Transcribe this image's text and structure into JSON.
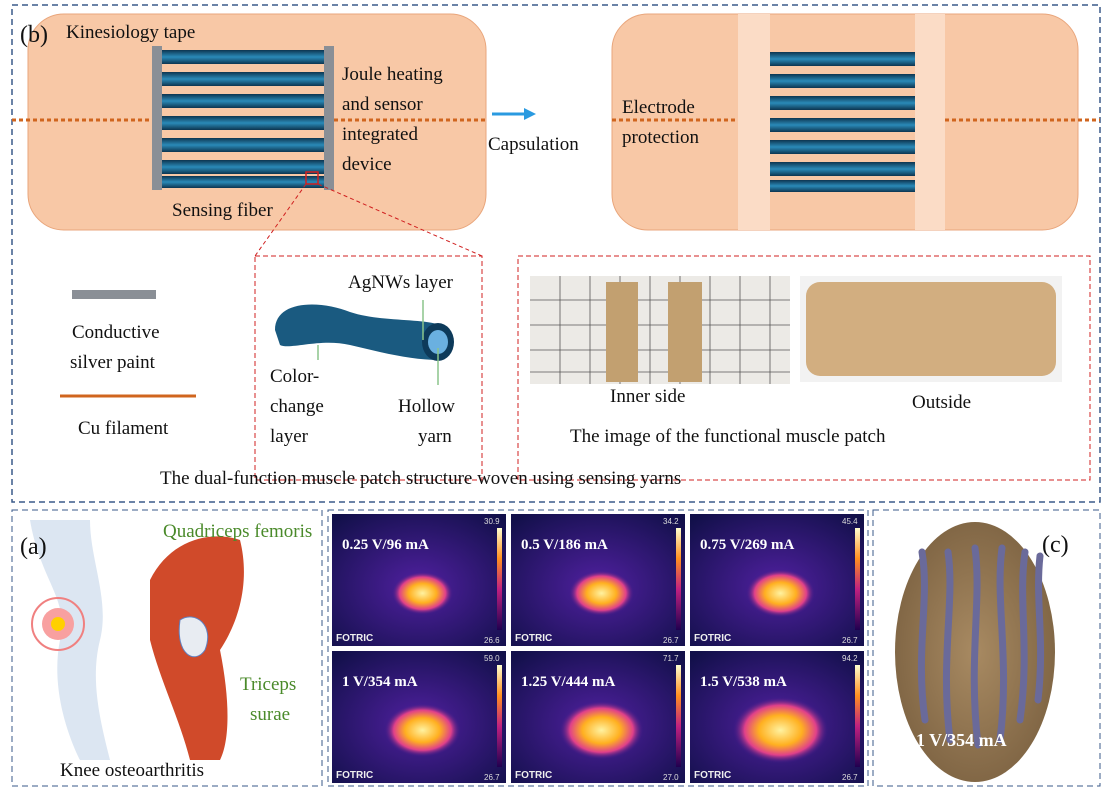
{
  "panel_b": {
    "label": "(b)",
    "tape_title": "Kinesiology tape",
    "device_lines": [
      "Joule heating",
      "and sensor",
      "integrated",
      "device"
    ],
    "sensing_fiber": "Sensing fiber",
    "capsulation": "Capsulation",
    "electrode_lines": [
      "Electrode",
      "protection"
    ],
    "legend": {
      "silver_lines": [
        "Conductive",
        "silver paint"
      ],
      "cu": "Cu filament"
    },
    "yarn": {
      "agnws": "AgNWs layer",
      "color_lines": [
        "Color-",
        "change",
        "layer"
      ],
      "hollow_lines": [
        "Hollow",
        "yarn"
      ]
    },
    "photos": {
      "inner": "Inner side",
      "outside": "Outside",
      "caption": "The image of the functional muscle patch"
    },
    "caption": "The dual-function muscle patch structure woven using sensing yarns"
  },
  "panel_a": {
    "label": "(a)",
    "quadriceps": "Quadriceps femoris",
    "triceps_lines": [
      "Triceps",
      "surae"
    ],
    "caption": "Knee osteoarthritis"
  },
  "thermal": {
    "brand": "FOTRIC",
    "images": [
      {
        "label": "0.25 V/96 mA",
        "max": "30.9",
        "min": "26.6"
      },
      {
        "label": "0.5 V/186 mA",
        "max": "34.2",
        "min": "26.7"
      },
      {
        "label": "0.75 V/269 mA",
        "max": "45.4",
        "min": "26.7"
      },
      {
        "label": "1 V/354 mA",
        "max": "59.0",
        "min": "26.7"
      },
      {
        "label": "1.25 V/444 mA",
        "max": "71.7",
        "min": "27.0"
      },
      {
        "label": "1.5 V/538 mA",
        "max": "94.2",
        "min": "26.7"
      }
    ]
  },
  "panel_c": {
    "label": "(c)",
    "value": "1 V/354 mA"
  },
  "colors": {
    "border": "#3a5a8a",
    "tape": "#f8c8a6",
    "stripe": "#1a5a80",
    "cu": "#d0651e",
    "label_green": "#4a8a2a"
  }
}
